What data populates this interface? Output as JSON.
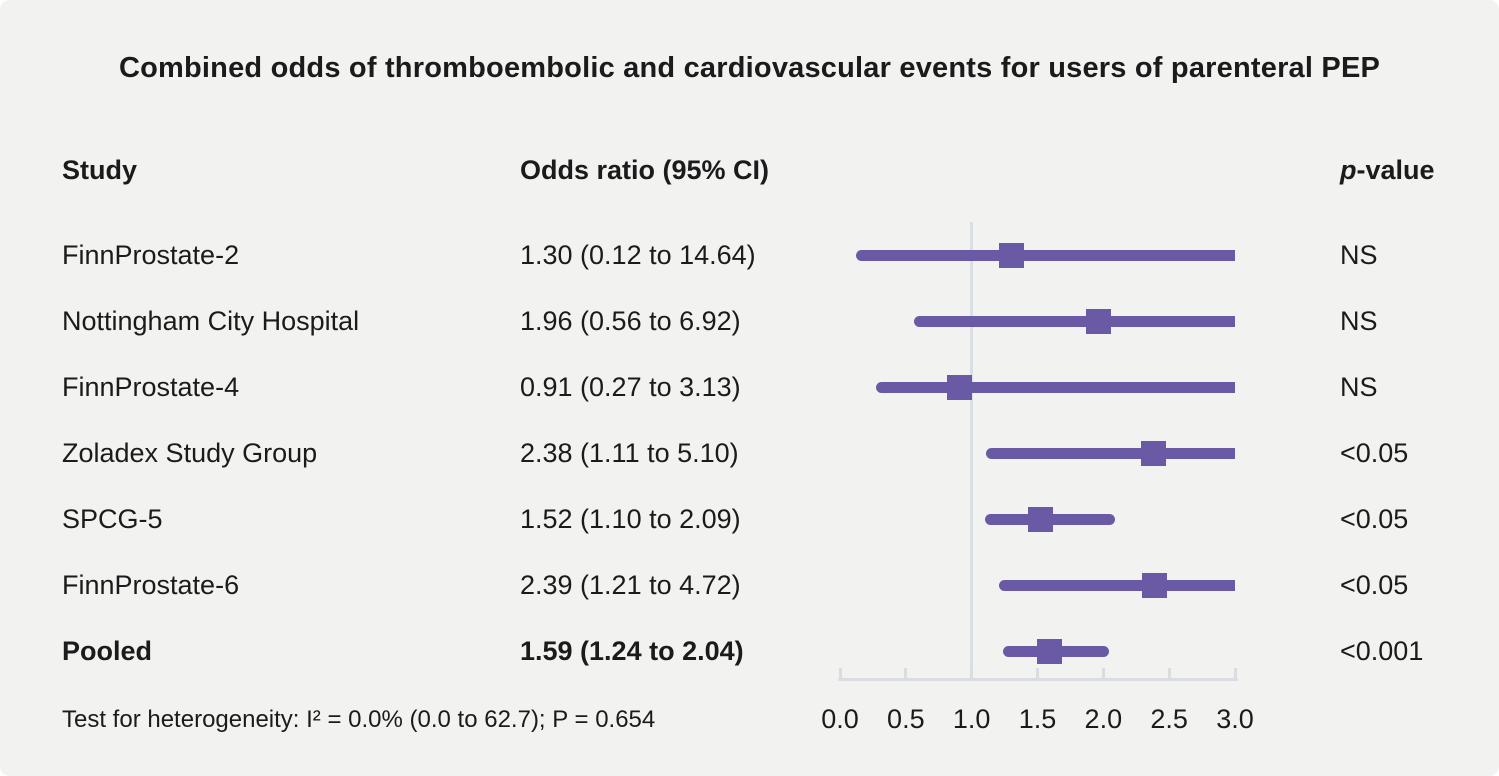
{
  "title": "Combined odds of thromboembolic and cardiovascular events for users of parenteral PEP",
  "headers": {
    "study": "Study",
    "odds_ratio": "Odds ratio (95% CI)",
    "p_italic": "p",
    "p_rest": "-value"
  },
  "footer": {
    "heterogeneity": "Test for heterogeneity: I² = 0.0% (0.0 to 62.7); P = 0.654"
  },
  "colors": {
    "accent_purple": "#6a59a5",
    "axis_gray": "#d9dde2",
    "background": "#f2f2f1",
    "text": "#1b1b1b"
  },
  "chart_data": {
    "type": "forest",
    "title": "Combined odds of thromboembolic and cardiovascular events for users of parenteral PEP",
    "xlim": [
      0.0,
      3.0
    ],
    "x_ticks": [
      "0.0",
      "0.5",
      "1.0",
      "1.5",
      "2.0",
      "2.5",
      "3.0"
    ],
    "reference_line_x": 1.0,
    "grid": false,
    "rows": [
      {
        "study": "FinnProstate-2",
        "or_text": "1.30 (0.12 to 14.64)",
        "estimate": 1.3,
        "ci_low": 0.12,
        "ci_high": 14.64,
        "p_value": "NS",
        "bold": false
      },
      {
        "study": "Nottingham City Hospital",
        "or_text": "1.96 (0.56 to 6.92)",
        "estimate": 1.96,
        "ci_low": 0.56,
        "ci_high": 6.92,
        "p_value": "NS",
        "bold": false
      },
      {
        "study": "FinnProstate-4",
        "or_text": "0.91 (0.27 to 3.13)",
        "estimate": 0.91,
        "ci_low": 0.27,
        "ci_high": 3.13,
        "p_value": "NS",
        "bold": false
      },
      {
        "study": "Zoladex Study Group",
        "or_text": "2.38 (1.11 to 5.10)",
        "estimate": 2.38,
        "ci_low": 1.11,
        "ci_high": 5.1,
        "p_value": "<0.05",
        "bold": false
      },
      {
        "study": "SPCG-5",
        "or_text": "1.52 (1.10 to 2.09)",
        "estimate": 1.52,
        "ci_low": 1.1,
        "ci_high": 2.09,
        "p_value": "<0.05",
        "bold": false
      },
      {
        "study": "FinnProstate-6",
        "or_text": "2.39 (1.21 to 4.72)",
        "estimate": 2.39,
        "ci_low": 1.21,
        "ci_high": 4.72,
        "p_value": "<0.05",
        "bold": false
      },
      {
        "study": "Pooled",
        "or_text": "1.59 (1.24 to 2.04)",
        "estimate": 1.59,
        "ci_low": 1.24,
        "ci_high": 2.04,
        "p_value": "<0.001",
        "bold": true
      }
    ]
  }
}
